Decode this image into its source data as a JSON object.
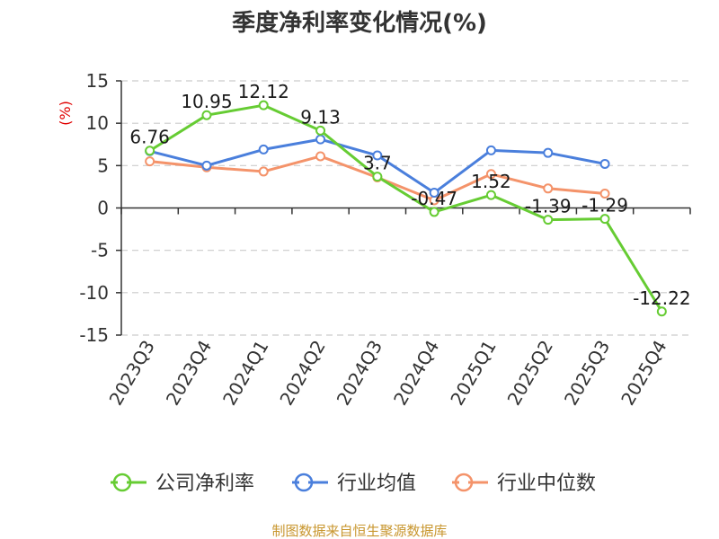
{
  "chart_data": {
    "type": "line",
    "title": "季度净利率变化情况(%)",
    "ylabel": "(%)",
    "xlabel": "",
    "categories": [
      "2023Q3",
      "2023Q4",
      "2024Q1",
      "2024Q2",
      "2024Q3",
      "2024Q4",
      "2025Q1",
      "2025Q2",
      "2025Q3",
      "2025Q4"
    ],
    "yticks": [
      15,
      10,
      5,
      0,
      -5,
      -10,
      -15
    ],
    "ylim": [
      -15,
      15
    ],
    "grid": true,
    "legend_position": "bottom",
    "series": [
      {
        "name": "公司净利率",
        "color": "#66cc33",
        "values": [
          6.76,
          10.95,
          12.12,
          9.13,
          3.7,
          -0.47,
          1.52,
          -1.39,
          -1.29,
          -12.22
        ],
        "labels": [
          "6.76",
          "10.95",
          "12.12",
          "9.13",
          "3.7",
          "-0.47",
          "1.52",
          "-1.39",
          "-1.29",
          "-12.22"
        ]
      },
      {
        "name": "行业均值",
        "color": "#4a7fdc",
        "values": [
          6.7,
          5.0,
          6.9,
          8.1,
          6.2,
          1.8,
          6.8,
          6.5,
          5.2,
          null
        ]
      },
      {
        "name": "行业中位数",
        "color": "#f4936a",
        "values": [
          5.5,
          4.8,
          4.3,
          6.1,
          3.6,
          0.9,
          4.0,
          2.3,
          1.7,
          null
        ]
      }
    ],
    "source": "制图数据来自恒生聚源数据库"
  }
}
